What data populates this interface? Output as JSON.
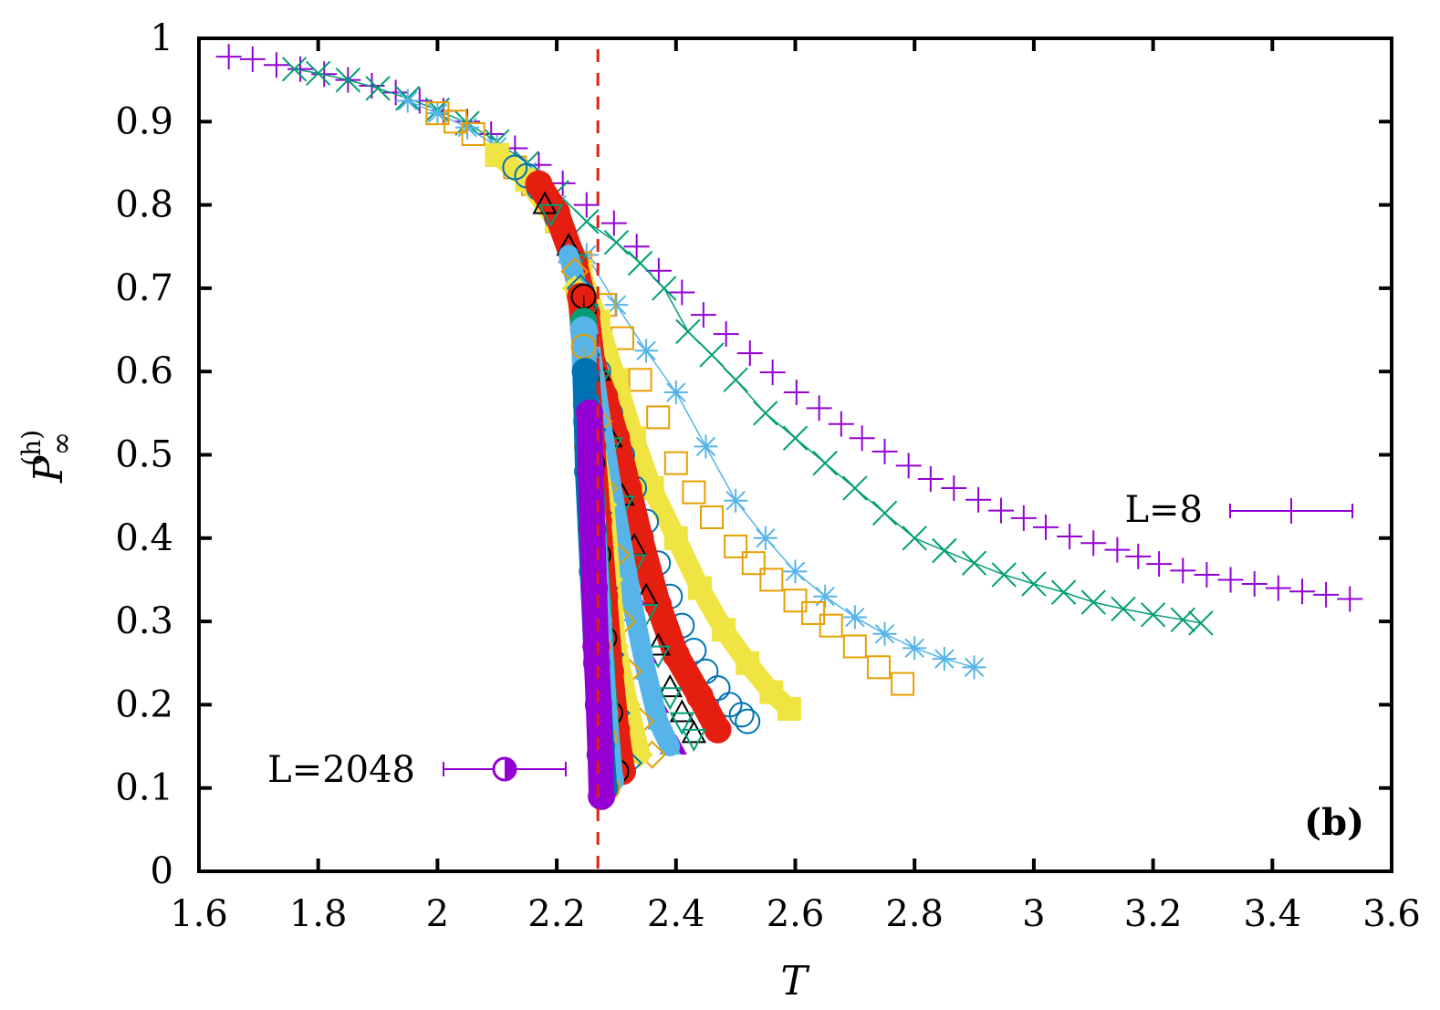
{
  "chart_data": {
    "type": "scatter",
    "title": "",
    "xlabel": "T",
    "ylabel": {
      "base": "P",
      "sub": "∞",
      "sup": "(h)"
    },
    "xlim": [
      1.6,
      3.6
    ],
    "ylim": [
      0,
      1
    ],
    "xticks": [
      "1.6",
      "1.8",
      "2",
      "2.2",
      "2.4",
      "2.6",
      "2.8",
      "3",
      "3.2",
      "3.4",
      "3.6"
    ],
    "yticks": [
      "0",
      "0.1",
      "0.2",
      "0.3",
      "0.4",
      "0.5",
      "0.6",
      "0.7",
      "0.8",
      "0.9",
      "1"
    ],
    "grid": false,
    "panel_label": "(b)",
    "reference_line": {
      "x": 2.269,
      "color": "#e51e10",
      "style": "dashed"
    },
    "legend": [
      {
        "label": "L=8",
        "series": 0,
        "placement": "right-middle"
      },
      {
        "label": "L=2048",
        "series": 20,
        "placement": "bottom-left"
      }
    ],
    "series": [
      {
        "name": "L=8",
        "marker": "plus",
        "color": "#9400d3",
        "line": false,
        "x": [
          1.65,
          1.69,
          1.73,
          1.77,
          1.81,
          1.85,
          1.89,
          1.93,
          1.97,
          2.01,
          2.05,
          2.09,
          2.13,
          2.17,
          2.21,
          2.25,
          2.296,
          2.334,
          2.371,
          2.41,
          2.446,
          2.484,
          2.524,
          2.562,
          2.602,
          2.64,
          2.677,
          2.712,
          2.75,
          2.79,
          2.827,
          2.866,
          2.907,
          2.945,
          2.983,
          3.02,
          3.06,
          3.1,
          3.14,
          3.175,
          3.21,
          3.25,
          3.29,
          3.33,
          3.37,
          3.41,
          3.45,
          3.49,
          3.53
        ],
        "y": [
          0.978,
          0.975,
          0.968,
          0.963,
          0.957,
          0.95,
          0.943,
          0.935,
          0.925,
          0.913,
          0.9,
          0.885,
          0.868,
          0.848,
          0.826,
          0.8,
          0.778,
          0.75,
          0.721,
          0.695,
          0.668,
          0.645,
          0.622,
          0.599,
          0.575,
          0.556,
          0.537,
          0.52,
          0.504,
          0.487,
          0.471,
          0.46,
          0.446,
          0.433,
          0.424,
          0.413,
          0.402,
          0.394,
          0.386,
          0.378,
          0.369,
          0.361,
          0.356,
          0.35,
          0.345,
          0.34,
          0.336,
          0.332,
          0.327
        ]
      },
      {
        "marker": "cross",
        "color": "#009e73",
        "line": true,
        "x": [
          1.76,
          1.8,
          1.85,
          1.9,
          1.95,
          2.0,
          2.05,
          2.1,
          2.15,
          2.2,
          2.25,
          2.3,
          2.34,
          2.38,
          2.42,
          2.46,
          2.5,
          2.55,
          2.6,
          2.65,
          2.7,
          2.75,
          2.8,
          2.85,
          2.9,
          2.95,
          3.0,
          3.05,
          3.1,
          3.15,
          3.2,
          3.25,
          3.28
        ],
        "y": [
          0.963,
          0.958,
          0.95,
          0.94,
          0.928,
          0.914,
          0.898,
          0.876,
          0.85,
          0.815,
          0.78,
          0.755,
          0.73,
          0.7,
          0.648,
          0.62,
          0.59,
          0.55,
          0.52,
          0.49,
          0.46,
          0.43,
          0.4,
          0.385,
          0.37,
          0.356,
          0.345,
          0.335,
          0.323,
          0.315,
          0.308,
          0.302,
          0.298
        ]
      },
      {
        "marker": "star",
        "color": "#56b4e9",
        "line": true,
        "x": [
          1.95,
          2.0,
          2.05,
          2.1,
          2.15,
          2.2,
          2.25,
          2.3,
          2.35,
          2.4,
          2.45,
          2.5,
          2.55,
          2.6,
          2.65,
          2.7,
          2.75,
          2.8,
          2.85,
          2.9
        ],
        "y": [
          0.925,
          0.91,
          0.893,
          0.87,
          0.84,
          0.8,
          0.74,
          0.68,
          0.625,
          0.575,
          0.51,
          0.445,
          0.4,
          0.36,
          0.33,
          0.305,
          0.285,
          0.268,
          0.255,
          0.245
        ]
      },
      {
        "marker": "square-open",
        "color": "#e69f00",
        "line": false,
        "x": [
          2.0,
          2.03,
          2.06,
          2.1,
          2.13,
          2.16,
          2.2,
          2.24,
          2.28,
          2.31,
          2.34,
          2.37,
          2.4,
          2.43,
          2.46,
          2.5,
          2.53,
          2.56,
          2.6,
          2.63,
          2.66,
          2.7,
          2.74,
          2.78
        ],
        "y": [
          0.91,
          0.9,
          0.885,
          0.86,
          0.845,
          0.825,
          0.78,
          0.73,
          0.68,
          0.64,
          0.59,
          0.545,
          0.49,
          0.455,
          0.425,
          0.39,
          0.37,
          0.35,
          0.325,
          0.31,
          0.295,
          0.27,
          0.245,
          0.225
        ]
      },
      {
        "marker": "square-filled",
        "color": "#f0e442",
        "line": true,
        "x": [
          2.1,
          2.15,
          2.2,
          2.24,
          2.27,
          2.3,
          2.33,
          2.36,
          2.4,
          2.44,
          2.48,
          2.52,
          2.56,
          2.59
        ],
        "y": [
          0.86,
          0.83,
          0.78,
          0.72,
          0.66,
          0.59,
          0.52,
          0.46,
          0.4,
          0.34,
          0.29,
          0.25,
          0.215,
          0.195
        ]
      },
      {
        "marker": "circle-open",
        "color": "#0072b2",
        "line": false,
        "x": [
          2.13,
          2.15,
          2.17,
          2.2,
          2.23,
          2.25,
          2.27,
          2.29,
          2.31,
          2.33,
          2.35,
          2.37,
          2.39,
          2.41,
          2.43,
          2.45,
          2.47,
          2.49,
          2.51,
          2.52
        ],
        "y": [
          0.845,
          0.835,
          0.82,
          0.785,
          0.73,
          0.67,
          0.6,
          0.55,
          0.5,
          0.46,
          0.42,
          0.37,
          0.33,
          0.295,
          0.265,
          0.24,
          0.22,
          0.2,
          0.188,
          0.18
        ]
      },
      {
        "marker": "circle-filled",
        "color": "#e51e10",
        "line": true,
        "x": [
          2.17,
          2.2,
          2.23,
          2.25,
          2.26,
          2.28,
          2.3,
          2.32,
          2.34,
          2.37,
          2.4,
          2.44,
          2.47
        ],
        "y": [
          0.825,
          0.79,
          0.73,
          0.67,
          0.61,
          0.57,
          0.52,
          0.46,
          0.4,
          0.32,
          0.26,
          0.21,
          0.17
        ]
      },
      {
        "marker": "triangle-open",
        "color": "#000000",
        "line": false,
        "x": [
          2.18,
          2.22,
          2.25,
          2.27,
          2.29,
          2.31,
          2.33,
          2.35,
          2.37,
          2.39,
          2.41,
          2.43
        ],
        "y": [
          0.8,
          0.75,
          0.68,
          0.6,
          0.52,
          0.45,
          0.39,
          0.33,
          0.27,
          0.22,
          0.19,
          0.165
        ]
      },
      {
        "marker": "triangle-down-open",
        "color": "#009e73",
        "line": false,
        "x": [
          2.19,
          2.23,
          2.25,
          2.27,
          2.29,
          2.31,
          2.33,
          2.35,
          2.37,
          2.39,
          2.41,
          2.43
        ],
        "y": [
          0.79,
          0.73,
          0.67,
          0.59,
          0.51,
          0.44,
          0.37,
          0.31,
          0.26,
          0.21,
          0.18,
          0.16
        ]
      },
      {
        "marker": "triangle-filled",
        "color": "#9400d3",
        "line": false,
        "x": [
          2.22,
          2.25,
          2.27,
          2.29,
          2.31,
          2.33,
          2.35,
          2.37,
          2.39,
          2.4
        ],
        "y": [
          0.74,
          0.66,
          0.57,
          0.48,
          0.4,
          0.33,
          0.26,
          0.2,
          0.16,
          0.15
        ]
      },
      {
        "marker": "triangle-filled",
        "color": "#56b4e9",
        "line": true,
        "x": [
          2.22,
          2.25,
          2.27,
          2.29,
          2.31,
          2.33,
          2.35,
          2.37,
          2.39
        ],
        "y": [
          0.74,
          0.66,
          0.56,
          0.47,
          0.39,
          0.31,
          0.24,
          0.18,
          0.15
        ]
      },
      {
        "marker": "diamond-open",
        "color": "#e69f00",
        "line": false,
        "x": [
          2.23,
          2.25,
          2.27,
          2.28,
          2.3,
          2.31,
          2.32,
          2.34,
          2.36
        ],
        "y": [
          0.72,
          0.64,
          0.54,
          0.46,
          0.38,
          0.3,
          0.24,
          0.18,
          0.14
        ]
      },
      {
        "marker": "diamond-filled",
        "color": "#f0e442",
        "line": true,
        "x": [
          2.23,
          2.25,
          2.26,
          2.28,
          2.29,
          2.3,
          2.32,
          2.34
        ],
        "y": [
          0.7,
          0.63,
          0.53,
          0.44,
          0.35,
          0.27,
          0.2,
          0.14
        ]
      },
      {
        "marker": "diamond-open",
        "color": "#0072b2",
        "line": false,
        "x": [
          2.24,
          2.25,
          2.26,
          2.27,
          2.28,
          2.29,
          2.3,
          2.32
        ],
        "y": [
          0.7,
          0.62,
          0.53,
          0.43,
          0.34,
          0.26,
          0.19,
          0.13
        ]
      },
      {
        "marker": "circle-filled",
        "color": "#e51e10",
        "line": true,
        "x": [
          2.24,
          2.25,
          2.26,
          2.27,
          2.28,
          2.29,
          2.3,
          2.31
        ],
        "y": [
          0.69,
          0.6,
          0.51,
          0.42,
          0.33,
          0.24,
          0.17,
          0.12
        ]
      },
      {
        "marker": "circle-open",
        "color": "#000000",
        "line": true,
        "x": [
          2.245,
          2.25,
          2.26,
          2.27,
          2.28,
          2.29,
          2.3
        ],
        "y": [
          0.69,
          0.59,
          0.49,
          0.38,
          0.28,
          0.19,
          0.12
        ]
      },
      {
        "marker": "circle-filled",
        "color": "#009e73",
        "line": true,
        "x": [
          2.245,
          2.25,
          2.26,
          2.27,
          2.28,
          2.29
        ],
        "y": [
          0.66,
          0.56,
          0.44,
          0.32,
          0.2,
          0.11
        ]
      },
      {
        "marker": "circle-filled",
        "color": "#56b4e9",
        "line": true,
        "x": [
          2.245,
          2.25,
          2.26,
          2.27,
          2.28,
          2.29
        ],
        "y": [
          0.65,
          0.54,
          0.42,
          0.3,
          0.19,
          0.11
        ]
      },
      {
        "marker": "circle-open",
        "color": "#e69f00",
        "line": true,
        "x": [
          2.245,
          2.25,
          2.26,
          2.27,
          2.28,
          2.285
        ],
        "y": [
          0.63,
          0.51,
          0.39,
          0.27,
          0.16,
          0.1
        ]
      },
      {
        "marker": "circle-filled",
        "color": "#0072b2",
        "line": true,
        "x": [
          2.248,
          2.252,
          2.26,
          2.267,
          2.275,
          2.28
        ],
        "y": [
          0.6,
          0.48,
          0.36,
          0.25,
          0.15,
          0.1
        ]
      },
      {
        "name": "L=2048",
        "marker": "circle-filled",
        "color": "#9400d3",
        "line": true,
        "x": [
          2.255,
          2.257,
          2.26,
          2.263,
          2.266,
          2.27,
          2.273,
          2.275
        ],
        "y": [
          0.55,
          0.48,
          0.41,
          0.34,
          0.27,
          0.2,
          0.14,
          0.09
        ]
      }
    ]
  }
}
